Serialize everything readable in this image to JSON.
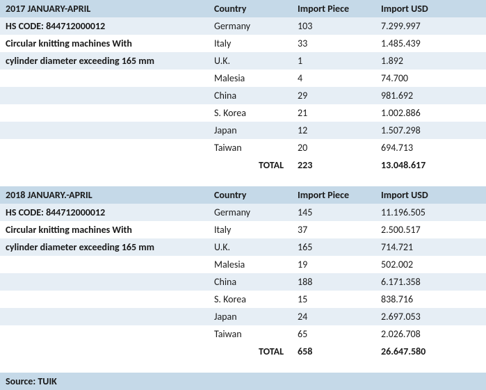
{
  "colors": {
    "header_bg": "#c5d9e8",
    "odd_row_bg": "#e6eef5",
    "even_row_bg": "#ffffff",
    "text": "#1a1a1a"
  },
  "typography": {
    "font_family": "Calibri, Arial, sans-serif",
    "font_size_pt": 11,
    "header_weight": "bold"
  },
  "columns": {
    "country": "Country",
    "piece": "Import Piece",
    "usd": "Import USD",
    "total": "TOTAL"
  },
  "tables": [
    {
      "period": "2017 JANUARY-APRIL",
      "hs_code_line": "HS CODE: 844712000012",
      "desc_line1": "Circular knitting machines With",
      "desc_line2": "cylinder diameter exceeding 165 mm",
      "rows": [
        {
          "country": "Germany",
          "piece": "103",
          "usd": "7.299.997"
        },
        {
          "country": "Italy",
          "piece": "33",
          "usd": "1.485.439"
        },
        {
          "country": "U.K.",
          "piece": "1",
          "usd": "1.892"
        },
        {
          "country": "Malesia",
          "piece": "4",
          "usd": "74.700"
        },
        {
          "country": "China",
          "piece": "29",
          "usd": "981.692"
        },
        {
          "country": "S. Korea",
          "piece": "21",
          "usd": "1.002.886"
        },
        {
          "country": "Japan",
          "piece": "12",
          "usd": "1.507.298"
        },
        {
          "country": "Taiwan",
          "piece": "20",
          "usd": "694.713"
        }
      ],
      "total_piece": "223",
      "total_usd": "13.048.617"
    },
    {
      "period": "2018 JANUARY.-APRIL",
      "hs_code_line": "HS CODE: 844712000012",
      "desc_line1": "Circular knitting machines With",
      "desc_line2": "cylinder diameter exceeding 165 mm",
      "rows": [
        {
          "country": "Germany",
          "piece": "145",
          "usd": "11.196.505"
        },
        {
          "country": "Italy",
          "piece": "37",
          "usd": "2.500.517"
        },
        {
          "country": "U.K.",
          "piece": "165",
          "usd": "714.721"
        },
        {
          "country": "Malesia",
          "piece": "19",
          "usd": "502.002"
        },
        {
          "country": "China",
          "piece": "188",
          "usd": "6.171.358"
        },
        {
          "country": "S. Korea",
          "piece": "15",
          "usd": "838.716"
        },
        {
          "country": "Japan",
          "piece": "24",
          "usd": "2.697.053"
        },
        {
          "country": "Taiwan",
          "piece": "65",
          "usd": "2.026.708"
        }
      ],
      "total_piece": "658",
      "total_usd": "26.647.580"
    }
  ],
  "source": "Source: TUIK"
}
